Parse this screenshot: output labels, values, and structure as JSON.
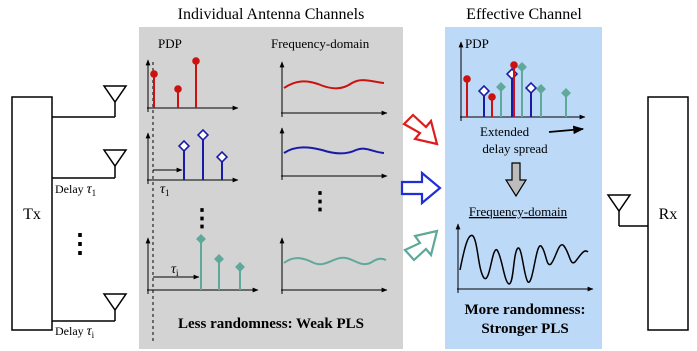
{
  "titles": {
    "individual": "Individual Antenna Channels",
    "effective": "Effective Channel"
  },
  "labels": {
    "tx": "Tx",
    "rx": "Rx",
    "delay": "Delay",
    "tau1": "τ",
    "tau1_sub": "1",
    "taui": "τ",
    "taui_sub": "i",
    "pdp_left": "PDP",
    "freq_left": "Frequency-domain",
    "pdp_right": "PDP",
    "extended_line1": "Extended",
    "extended_line2": "delay spread",
    "freq_right": "Frequency-domain",
    "dots": "⋮"
  },
  "captions": {
    "weak": "Less randomness: Weak PLS",
    "strong_line1": "More randomness:",
    "strong_line2": "Stronger PLS"
  },
  "colors": {
    "red": "#cc1111",
    "blue": "#1a1aa8",
    "teal": "#5fa89a",
    "gray_panel": "#d3d3d3",
    "blue_panel": "#bcd9f7"
  }
}
